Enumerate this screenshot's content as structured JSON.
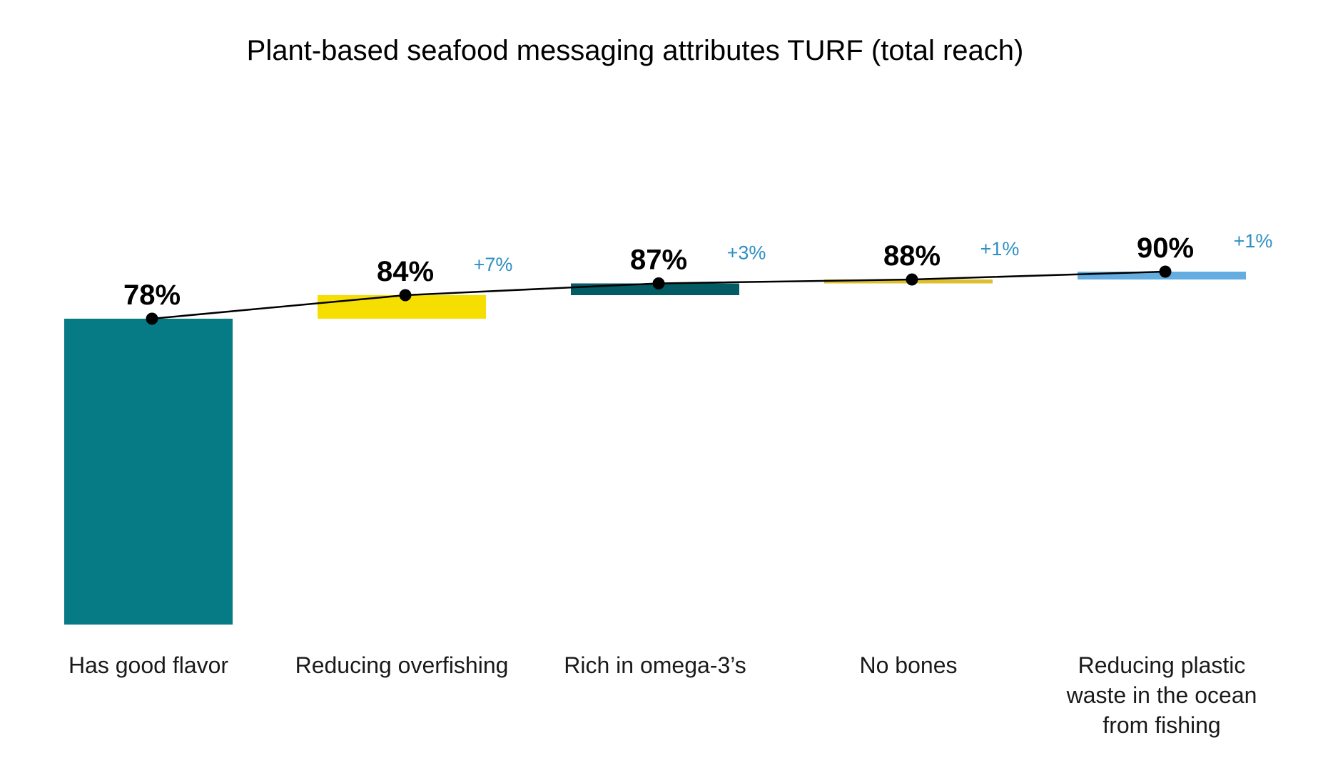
{
  "chart_data": {
    "type": "bar",
    "subtype": "waterfall",
    "title": "Plant-based seafood messaging attributes TURF (total reach)",
    "categories": [
      "Has good flavor",
      "Reducing overfishing",
      "Rich in omega-3’s",
      "No bones",
      "Reducing plastic waste in the ocean from fishing"
    ],
    "category_lines": [
      [
        "Has good flavor"
      ],
      [
        "Reducing overfishing"
      ],
      [
        "Rich in omega-3’s"
      ],
      [
        "No bones"
      ],
      [
        "Reducing plastic",
        "waste in the ocean",
        "from fishing"
      ]
    ],
    "cumulative_values": [
      78,
      84,
      87,
      88,
      90
    ],
    "increments": [
      78,
      7,
      3,
      1,
      1
    ],
    "total_labels": [
      "78%",
      "84%",
      "87%",
      "88%",
      "90%"
    ],
    "delta_labels": [
      "",
      "+7%",
      "+3%",
      "+1%",
      "+1%"
    ],
    "bar_colors": [
      "#077b85",
      "#f6de00",
      "#035b63",
      "#ddbf2a",
      "#63ade0"
    ],
    "delta_label_color": "#2e8fc4",
    "line_color": "#000000",
    "marker_color": "#000000",
    "ylim": [
      0,
      100
    ],
    "grid": false,
    "legend": false
  }
}
